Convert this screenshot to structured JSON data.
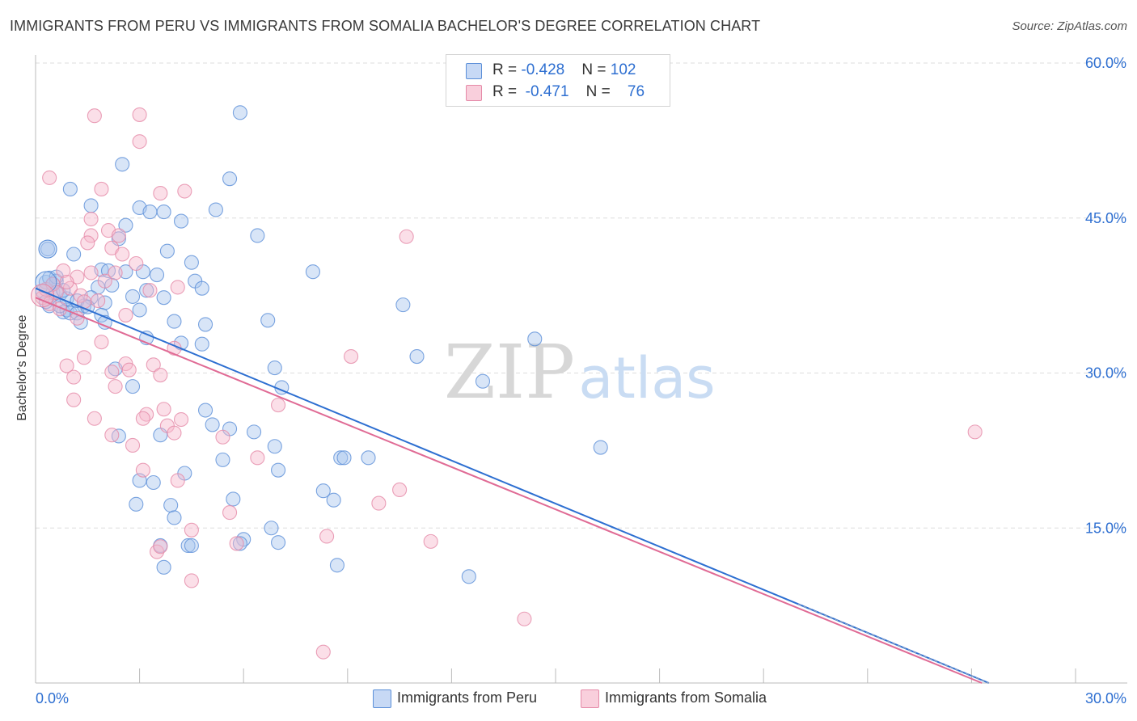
{
  "header": {
    "title": "IMMIGRANTS FROM PERU VS IMMIGRANTS FROM SOMALIA BACHELOR'S DEGREE CORRELATION CHART",
    "source": "Source: ZipAtlas.com"
  },
  "legend": {
    "rows": [
      {
        "r_label": "R = ",
        "r_value": "-0.428",
        "n_label": "N = ",
        "n_value": "102"
      },
      {
        "r_label": "R = ",
        "r_value": "-0.471",
        "n_label": "N = ",
        "n_value": "76"
      }
    ]
  },
  "bottom_legend": {
    "peru": "Immigrants from Peru",
    "somalia": "Immigrants from Somalia"
  },
  "watermark": {
    "zip": "ZIP",
    "atlas": "atlas"
  },
  "colors": {
    "peru_fill": "#a9c5ee",
    "peru_stroke": "#5b8fd8",
    "peru_line": "#2d6fd1",
    "somalia_fill": "#f6b8cb",
    "somalia_stroke": "#e58aa8",
    "somalia_line": "#e06b95",
    "accent_text": "#2e6fd1",
    "grid": "#dddddd"
  },
  "chart_data": {
    "type": "scatter",
    "title": "IMMIGRANTS FROM PERU VS IMMIGRANTS FROM SOMALIA BACHELOR'S DEGREE CORRELATION CHART",
    "xlabel": "",
    "ylabel": "Bachelor's Degree",
    "xlim": [
      0,
      30
    ],
    "ylim": [
      0,
      60
    ],
    "x_ticks": [
      "0.0%",
      "30.0%"
    ],
    "y_ticks": [
      {
        "value": 60,
        "label": "60.0%"
      },
      {
        "value": 45,
        "label": "45.0%"
      },
      {
        "value": 30,
        "label": "30.0%"
      },
      {
        "value": 15,
        "label": "15.0%"
      }
    ],
    "grid": "horizontal dashed",
    "legend_position": "top-center",
    "series": [
      {
        "name": "Immigrants from Peru",
        "r": -0.428,
        "n": 102,
        "trend": {
          "x0": 0,
          "y0": 38.2,
          "x1": 27.5,
          "y1": 0
        },
        "points": [
          [
            0.2,
            37.9
          ],
          [
            0.3,
            38.8
          ],
          [
            0.4,
            39.2
          ],
          [
            0.5,
            37.8
          ],
          [
            0.6,
            38.9
          ],
          [
            0.4,
            36.5
          ],
          [
            0.7,
            37.6
          ],
          [
            0.8,
            35.9
          ],
          [
            0.9,
            36.1
          ],
          [
            1.0,
            35.8
          ],
          [
            0.35,
            42.0
          ],
          [
            1.1,
            41.5
          ],
          [
            1.0,
            47.8
          ],
          [
            1.6,
            46.2
          ],
          [
            2.5,
            50.2
          ],
          [
            3.0,
            46.0
          ],
          [
            3.3,
            45.6
          ],
          [
            3.7,
            45.6
          ],
          [
            4.2,
            44.7
          ],
          [
            2.6,
            44.3
          ],
          [
            5.2,
            45.8
          ],
          [
            5.6,
            48.8
          ],
          [
            6.4,
            43.3
          ],
          [
            8.0,
            39.8
          ],
          [
            5.9,
            55.2
          ],
          [
            2.4,
            43.0
          ],
          [
            3.8,
            41.8
          ],
          [
            4.5,
            40.7
          ],
          [
            1.9,
            40.0
          ],
          [
            2.1,
            39.9
          ],
          [
            2.6,
            39.8
          ],
          [
            3.1,
            39.8
          ],
          [
            3.5,
            39.5
          ],
          [
            4.6,
            38.9
          ],
          [
            1.8,
            38.3
          ],
          [
            2.2,
            38.5
          ],
          [
            3.2,
            38.0
          ],
          [
            3.7,
            37.3
          ],
          [
            4.8,
            38.2
          ],
          [
            2.8,
            37.4
          ],
          [
            1.6,
            37.3
          ],
          [
            2.0,
            36.8
          ],
          [
            1.4,
            36.5
          ],
          [
            1.2,
            35.8
          ],
          [
            1.9,
            35.6
          ],
          [
            3.0,
            36.1
          ],
          [
            4.0,
            35.0
          ],
          [
            1.3,
            34.9
          ],
          [
            2.0,
            34.9
          ],
          [
            3.2,
            33.4
          ],
          [
            4.9,
            34.7
          ],
          [
            6.7,
            35.1
          ],
          [
            4.2,
            32.9
          ],
          [
            4.8,
            32.8
          ],
          [
            7.1,
            28.6
          ],
          [
            10.6,
            36.6
          ],
          [
            11.0,
            31.6
          ],
          [
            12.9,
            29.2
          ],
          [
            14.4,
            33.3
          ],
          [
            2.3,
            30.4
          ],
          [
            6.9,
            30.5
          ],
          [
            2.8,
            28.7
          ],
          [
            4.9,
            26.4
          ],
          [
            5.1,
            25.0
          ],
          [
            5.6,
            24.6
          ],
          [
            6.3,
            24.3
          ],
          [
            2.4,
            23.9
          ],
          [
            3.6,
            24.0
          ],
          [
            6.9,
            22.9
          ],
          [
            5.4,
            21.6
          ],
          [
            7.0,
            20.6
          ],
          [
            8.8,
            21.8
          ],
          [
            8.9,
            21.8
          ],
          [
            9.6,
            21.8
          ],
          [
            16.3,
            22.8
          ],
          [
            3.0,
            19.6
          ],
          [
            3.4,
            19.4
          ],
          [
            4.3,
            20.3
          ],
          [
            2.9,
            17.3
          ],
          [
            3.9,
            17.2
          ],
          [
            5.7,
            17.8
          ],
          [
            8.3,
            18.6
          ],
          [
            8.6,
            17.7
          ],
          [
            4.0,
            16.0
          ],
          [
            6.8,
            15.0
          ],
          [
            6.0,
            13.9
          ],
          [
            5.9,
            13.5
          ],
          [
            7.0,
            13.6
          ],
          [
            3.6,
            13.3
          ],
          [
            4.4,
            13.3
          ],
          [
            4.5,
            13.3
          ],
          [
            3.7,
            11.2
          ],
          [
            8.7,
            11.4
          ],
          [
            12.5,
            10.3
          ],
          [
            0.5,
            38.6
          ],
          [
            0.6,
            39.3
          ],
          [
            0.7,
            36.5
          ],
          [
            0.9,
            37.2
          ],
          [
            1.2,
            37.0
          ],
          [
            0.3,
            36.9
          ],
          [
            0.8,
            38.0
          ],
          [
            1.5,
            36.4
          ]
        ]
      },
      {
        "name": "Immigrants from Somalia",
        "r": -0.471,
        "n": 76,
        "trend": {
          "x0": 0,
          "y0": 37.3,
          "x1": 27.3,
          "y1": 0
        },
        "points": [
          [
            0.2,
            37.3
          ],
          [
            0.3,
            38.1
          ],
          [
            0.4,
            36.7
          ],
          [
            0.5,
            38.6
          ],
          [
            0.6,
            37.8
          ],
          [
            0.8,
            39.9
          ],
          [
            1.0,
            38.2
          ],
          [
            1.2,
            39.3
          ],
          [
            1.6,
            39.7
          ],
          [
            0.4,
            48.9
          ],
          [
            1.7,
            54.9
          ],
          [
            3.0,
            55.0
          ],
          [
            3.0,
            52.4
          ],
          [
            1.9,
            47.8
          ],
          [
            3.6,
            47.4
          ],
          [
            4.3,
            47.6
          ],
          [
            1.6,
            44.9
          ],
          [
            1.6,
            43.3
          ],
          [
            2.1,
            43.8
          ],
          [
            2.4,
            43.3
          ],
          [
            1.5,
            42.6
          ],
          [
            2.2,
            42.1
          ],
          [
            2.5,
            41.5
          ],
          [
            2.9,
            40.6
          ],
          [
            2.3,
            39.7
          ],
          [
            2.0,
            38.9
          ],
          [
            3.3,
            38.0
          ],
          [
            4.1,
            38.3
          ],
          [
            1.3,
            37.5
          ],
          [
            1.8,
            37.0
          ],
          [
            2.6,
            35.6
          ],
          [
            1.2,
            35.3
          ],
          [
            1.9,
            33.0
          ],
          [
            4.0,
            32.4
          ],
          [
            1.4,
            31.5
          ],
          [
            2.6,
            30.9
          ],
          [
            3.4,
            30.8
          ],
          [
            2.2,
            30.1
          ],
          [
            0.9,
            30.7
          ],
          [
            1.1,
            29.6
          ],
          [
            3.6,
            29.8
          ],
          [
            2.3,
            28.7
          ],
          [
            1.1,
            27.4
          ],
          [
            7.0,
            26.9
          ],
          [
            3.2,
            26.0
          ],
          [
            3.7,
            26.5
          ],
          [
            3.1,
            25.6
          ],
          [
            4.2,
            25.5
          ],
          [
            1.7,
            25.6
          ],
          [
            3.8,
            24.9
          ],
          [
            2.2,
            24.0
          ],
          [
            5.4,
            23.8
          ],
          [
            2.8,
            23.0
          ],
          [
            6.4,
            21.8
          ],
          [
            3.1,
            20.6
          ],
          [
            4.1,
            19.6
          ],
          [
            10.5,
            18.7
          ],
          [
            9.9,
            17.4
          ],
          [
            5.6,
            16.5
          ],
          [
            4.5,
            14.8
          ],
          [
            8.4,
            14.2
          ],
          [
            11.4,
            13.7
          ],
          [
            5.8,
            13.5
          ],
          [
            3.5,
            12.7
          ],
          [
            3.6,
            13.2
          ],
          [
            4.5,
            9.9
          ],
          [
            8.3,
            3.0
          ],
          [
            14.1,
            6.2
          ],
          [
            9.1,
            31.6
          ],
          [
            10.7,
            43.2
          ],
          [
            27.1,
            24.3
          ],
          [
            0.7,
            36.2
          ],
          [
            1.4,
            36.9
          ],
          [
            0.9,
            38.8
          ],
          [
            4.0,
            24.2
          ],
          [
            2.7,
            30.3
          ]
        ]
      }
    ]
  }
}
